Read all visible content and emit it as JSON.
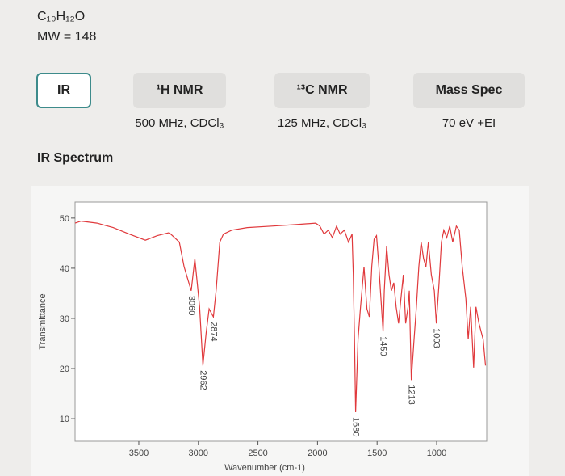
{
  "header": {
    "formula": "C₁₀H₁₂O",
    "mw": "MW = 148"
  },
  "tabs": [
    {
      "label": "IR"
    },
    {
      "label": "¹H NMR",
      "subtitle": "500 MHz, CDCl₃"
    },
    {
      "label": "¹³C NMR",
      "subtitle": "125 MHz, CDCl₃"
    },
    {
      "label": "Mass Spec",
      "subtitle": "70 eV +EI"
    }
  ],
  "selected_tab": 0,
  "section_title": "IR Spectrum",
  "chart_data": {
    "type": "line",
    "color": "#e0393c",
    "x_label": "Wavenumber (cm-1)",
    "y_label": "Transmittance",
    "xlim": [
      4035,
      580
    ],
    "ylim": [
      5.5,
      53.2
    ],
    "xticks": [
      3500,
      3000,
      2500,
      2000,
      1500,
      1000
    ],
    "yticks": [
      10,
      20,
      30,
      40,
      50
    ],
    "x": [
      4035,
      3985,
      3850,
      3715,
      3580,
      3445,
      3345,
      3245,
      3160,
      3120,
      3060,
      3030,
      2990,
      2962,
      2935,
      2910,
      2874,
      2850,
      2820,
      2790,
      2720,
      2590,
      2385,
      2180,
      2015,
      1980,
      1945,
      1910,
      1875,
      1840,
      1810,
      1775,
      1740,
      1710,
      1700,
      1690,
      1680,
      1660,
      1640,
      1610,
      1585,
      1565,
      1545,
      1525,
      1505,
      1485,
      1450,
      1440,
      1420,
      1400,
      1380,
      1360,
      1340,
      1320,
      1300,
      1280,
      1260,
      1240,
      1230,
      1213,
      1190,
      1170,
      1150,
      1130,
      1110,
      1090,
      1070,
      1045,
      1020,
      1003,
      980,
      960,
      940,
      915,
      890,
      865,
      835,
      810,
      785,
      755,
      735,
      715,
      690,
      670,
      645,
      610,
      590
    ],
    "values": [
      49.0,
      49.4,
      49.0,
      48.1,
      46.8,
      45.6,
      46.5,
      47.1,
      45.2,
      40.3,
      35.5,
      41.9,
      32.3,
      20.6,
      27.1,
      31.9,
      30.3,
      35.8,
      45.2,
      46.8,
      47.6,
      48.1,
      48.4,
      48.7,
      49.0,
      48.4,
      46.8,
      47.6,
      46.1,
      48.4,
      46.8,
      47.6,
      45.2,
      46.8,
      38.7,
      25.8,
      11.3,
      25.8,
      31.9,
      40.3,
      31.9,
      30.3,
      40.3,
      45.8,
      46.5,
      40.3,
      27.4,
      35.5,
      44.4,
      38.7,
      35.5,
      37.1,
      32.3,
      29.0,
      33.9,
      38.7,
      29.0,
      32.3,
      35.5,
      17.7,
      25.8,
      32.3,
      40.3,
      45.2,
      41.9,
      40.3,
      45.2,
      38.7,
      35.5,
      29.0,
      37.1,
      45.2,
      47.6,
      46.1,
      48.4,
      45.2,
      48.4,
      47.6,
      40.3,
      33.9,
      25.8,
      32.3,
      20.2,
      32.3,
      29.0,
      25.8,
      20.6
    ],
    "peaks": [
      3060,
      2962,
      2874,
      1680,
      1450,
      1213,
      1003
    ]
  }
}
